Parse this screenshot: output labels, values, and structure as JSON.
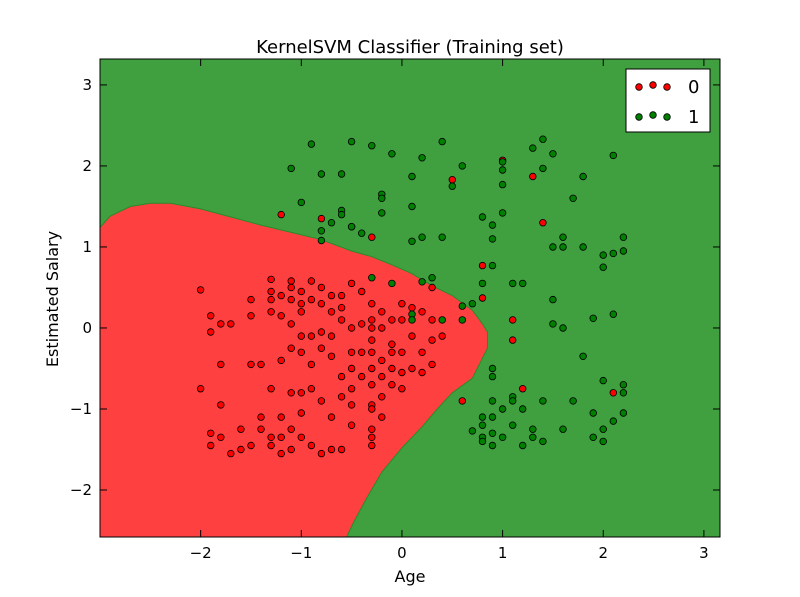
{
  "chart_data": {
    "type": "scatter",
    "title": "KernelSVM Classifier (Training set)",
    "xlabel": "Age",
    "ylabel": "Estimated Salary",
    "xlim": [
      -3.0,
      3.16
    ],
    "ylim": [
      -2.58,
      3.32
    ],
    "xticks": [
      -2,
      -1,
      0,
      1,
      2,
      3
    ],
    "yticks": [
      -2,
      -1,
      0,
      1,
      2,
      3
    ],
    "grid": false,
    "legend_position": "top-right",
    "region_colors": {
      "0": "#ff4040",
      "1": "#40a040"
    },
    "decision_boundary": {
      "class": "0",
      "polygon": [
        [
          -3.0,
          1.24
        ],
        [
          -2.9,
          1.38
        ],
        [
          -2.7,
          1.5
        ],
        [
          -2.5,
          1.54
        ],
        [
          -2.3,
          1.54
        ],
        [
          -2.0,
          1.47
        ],
        [
          -1.7,
          1.37
        ],
        [
          -1.4,
          1.27
        ],
        [
          -1.1,
          1.18
        ],
        [
          -0.8,
          1.09
        ],
        [
          -0.5,
          0.95
        ],
        [
          -0.3,
          0.88
        ],
        [
          -0.1,
          0.78
        ],
        [
          0.1,
          0.67
        ],
        [
          0.3,
          0.52
        ],
        [
          0.5,
          0.4
        ],
        [
          0.7,
          0.22
        ],
        [
          0.8,
          0.05
        ],
        [
          0.85,
          -0.05
        ],
        [
          0.85,
          -0.25
        ],
        [
          0.7,
          -0.62
        ],
        [
          0.5,
          -0.8
        ],
        [
          0.35,
          -1.0
        ],
        [
          0.2,
          -1.22
        ],
        [
          0.0,
          -1.48
        ],
        [
          -0.2,
          -1.78
        ],
        [
          -0.35,
          -2.1
        ],
        [
          -0.48,
          -2.4
        ],
        [
          -0.55,
          -2.58
        ],
        [
          -3.0,
          -2.58
        ]
      ]
    },
    "series": [
      {
        "name": "0",
        "color": "#ff0000",
        "points": [
          [
            -2.0,
            0.47
          ],
          [
            -1.9,
            0.15
          ],
          [
            -1.8,
            0.05
          ],
          [
            -1.9,
            -0.05
          ],
          [
            -1.8,
            -0.45
          ],
          [
            -1.7,
            0.05
          ],
          [
            -1.5,
            0.35
          ],
          [
            -1.5,
            0.15
          ],
          [
            -1.5,
            -0.45
          ],
          [
            -1.4,
            -0.45
          ],
          [
            -1.3,
            0.45
          ],
          [
            -1.3,
            0.35
          ],
          [
            -1.3,
            0.2
          ],
          [
            -1.2,
            0.4
          ],
          [
            -1.1,
            0.58
          ],
          [
            -1.1,
            0.5
          ],
          [
            -1.1,
            0.35
          ],
          [
            -1.0,
            0.45
          ],
          [
            -1.0,
            0.3
          ],
          [
            -1.0,
            0.2
          ],
          [
            -0.9,
            0.58
          ],
          [
            -0.9,
            0.35
          ],
          [
            -0.8,
            0.5
          ],
          [
            -0.8,
            0.3
          ],
          [
            -0.7,
            0.4
          ],
          [
            -0.7,
            0.2
          ],
          [
            -0.6,
            0.25
          ],
          [
            -0.6,
            0.1
          ],
          [
            -1.3,
            0.6
          ],
          [
            -1.2,
            0.15
          ],
          [
            -1.1,
            0.05
          ],
          [
            -1.0,
            -0.1
          ],
          [
            -0.9,
            -0.1
          ],
          [
            -0.8,
            -0.05
          ],
          [
            -0.7,
            -0.1
          ],
          [
            -1.2,
            -0.4
          ],
          [
            -1.1,
            -0.25
          ],
          [
            -1.0,
            -0.3
          ],
          [
            -0.9,
            -0.45
          ],
          [
            -0.8,
            -0.25
          ],
          [
            -0.7,
            -0.35
          ],
          [
            -0.5,
            -0.3
          ],
          [
            -0.5,
            0.0
          ],
          [
            -0.4,
            0.05
          ],
          [
            -0.3,
            0.1
          ],
          [
            -0.3,
            -0.15
          ],
          [
            -0.3,
            -0.3
          ],
          [
            -0.2,
            0.2
          ],
          [
            -0.2,
            0.0
          ],
          [
            -0.2,
            -0.4
          ],
          [
            -0.1,
            0.1
          ],
          [
            -0.1,
            -0.2
          ],
          [
            -0.1,
            -0.5
          ],
          [
            0.0,
            0.3
          ],
          [
            0.0,
            0.1
          ],
          [
            0.0,
            -0.3
          ],
          [
            0.1,
            0.25
          ],
          [
            0.1,
            -0.1
          ],
          [
            0.2,
            0.2
          ],
          [
            0.2,
            -0.3
          ],
          [
            0.3,
            0.5
          ],
          [
            0.3,
            0.1
          ],
          [
            0.3,
            -0.15
          ],
          [
            0.4,
            -0.1
          ],
          [
            -0.3,
            0.3
          ],
          [
            -0.3,
            0.0
          ],
          [
            -0.2,
            -0.6
          ],
          [
            -0.1,
            -0.7
          ],
          [
            -0.3,
            -0.7
          ],
          [
            -0.4,
            -0.6
          ],
          [
            -0.5,
            -0.75
          ],
          [
            -0.2,
            -0.85
          ],
          [
            -0.3,
            -0.95
          ],
          [
            0.0,
            -0.55
          ],
          [
            0.1,
            -0.5
          ],
          [
            0.2,
            -0.55
          ],
          [
            0.3,
            -0.45
          ],
          [
            0.0,
            -0.75
          ],
          [
            -0.1,
            -0.3
          ],
          [
            -0.4,
            -0.3
          ],
          [
            -0.3,
            -0.5
          ],
          [
            -0.5,
            -0.5
          ],
          [
            -2.0,
            -0.75
          ],
          [
            -1.8,
            -0.95
          ],
          [
            -1.9,
            -1.3
          ],
          [
            -1.9,
            -1.45
          ],
          [
            -1.8,
            -1.35
          ],
          [
            -1.7,
            -1.55
          ],
          [
            -1.6,
            -1.5
          ],
          [
            -1.6,
            -1.25
          ],
          [
            -1.5,
            -1.45
          ],
          [
            -1.4,
            -1.1
          ],
          [
            -1.4,
            -1.25
          ],
          [
            -1.3,
            -1.35
          ],
          [
            -1.3,
            -1.45
          ],
          [
            -1.2,
            -1.55
          ],
          [
            -1.2,
            -1.35
          ],
          [
            -1.2,
            -1.1
          ],
          [
            -1.1,
            -1.25
          ],
          [
            -1.1,
            -1.5
          ],
          [
            -1.0,
            -1.05
          ],
          [
            -1.0,
            -0.8
          ],
          [
            -1.0,
            -1.35
          ],
          [
            -0.9,
            -0.75
          ],
          [
            -0.9,
            -1.45
          ],
          [
            -0.8,
            -0.9
          ],
          [
            -0.8,
            -1.55
          ],
          [
            -0.7,
            -1.1
          ],
          [
            -0.7,
            -1.5
          ],
          [
            -0.6,
            -0.85
          ],
          [
            -0.6,
            -1.5
          ],
          [
            -0.5,
            -1.2
          ],
          [
            -0.5,
            -0.95
          ],
          [
            -0.3,
            -1.25
          ],
          [
            -0.3,
            -1.35
          ],
          [
            -0.3,
            -1.45
          ],
          [
            -0.2,
            -1.1
          ],
          [
            -0.3,
            -1.0
          ],
          [
            -1.3,
            -0.75
          ],
          [
            -1.1,
            -0.8
          ],
          [
            -0.6,
            0.4
          ],
          [
            -0.5,
            0.55
          ],
          [
            -0.4,
            0.45
          ],
          [
            -0.6,
            -0.6
          ],
          [
            -1.2,
            1.4
          ],
          [
            -0.8,
            1.35
          ],
          [
            -0.5,
            1.25
          ],
          [
            -0.3,
            1.12
          ],
          [
            0.8,
            0.77
          ],
          [
            0.8,
            0.37
          ],
          [
            1.1,
            0.1
          ],
          [
            1.1,
            -0.15
          ],
          [
            0.5,
            1.83
          ],
          [
            1.0,
            2.07
          ],
          [
            1.3,
            1.87
          ],
          [
            1.4,
            1.3
          ],
          [
            1.2,
            -0.75
          ],
          [
            2.1,
            -0.8
          ],
          [
            0.6,
            -0.9
          ]
        ]
      },
      {
        "name": "1",
        "color": "#008000",
        "points": [
          [
            -1.1,
            1.97
          ],
          [
            -0.9,
            2.27
          ],
          [
            -0.8,
            1.9
          ],
          [
            -0.6,
            1.9
          ],
          [
            -0.5,
            2.3
          ],
          [
            -0.3,
            2.25
          ],
          [
            -0.1,
            2.15
          ],
          [
            0.1,
            1.87
          ],
          [
            0.2,
            2.1
          ],
          [
            0.4,
            2.3
          ],
          [
            0.5,
            1.75
          ],
          [
            0.6,
            2.0
          ],
          [
            -1.0,
            1.55
          ],
          [
            -0.8,
            1.2
          ],
          [
            -0.7,
            1.3
          ],
          [
            -0.6,
            1.45
          ],
          [
            -0.6,
            1.4
          ],
          [
            -0.5,
            1.25
          ],
          [
            -0.4,
            1.17
          ],
          [
            -0.2,
            1.65
          ],
          [
            -0.2,
            1.6
          ],
          [
            -0.2,
            1.42
          ],
          [
            0.1,
            1.5
          ],
          [
            0.1,
            1.07
          ],
          [
            0.2,
            1.12
          ],
          [
            0.4,
            1.12
          ],
          [
            -0.8,
            1.08
          ],
          [
            -0.3,
            0.62
          ],
          [
            -0.1,
            0.55
          ],
          [
            0.2,
            0.57
          ],
          [
            0.3,
            0.62
          ],
          [
            0.6,
            0.27
          ],
          [
            0.7,
            0.3
          ],
          [
            0.6,
            0.1
          ],
          [
            0.4,
            0.1
          ],
          [
            0.1,
            0.17
          ],
          [
            0.1,
            0.1
          ],
          [
            0.8,
            1.37
          ],
          [
            0.9,
            1.27
          ],
          [
            1.0,
            1.42
          ],
          [
            1.0,
            1.77
          ],
          [
            1.0,
            1.95
          ],
          [
            1.0,
            2.05
          ],
          [
            0.9,
            1.1
          ],
          [
            0.8,
            0.55
          ],
          [
            0.9,
            0.77
          ],
          [
            1.1,
            0.55
          ],
          [
            1.2,
            0.55
          ],
          [
            1.3,
            2.22
          ],
          [
            1.4,
            2.33
          ],
          [
            1.4,
            1.97
          ],
          [
            1.5,
            2.15
          ],
          [
            1.6,
            1.12
          ],
          [
            1.5,
            1.0
          ],
          [
            1.6,
            1.0
          ],
          [
            1.7,
            1.6
          ],
          [
            1.8,
            1.0
          ],
          [
            1.8,
            1.87
          ],
          [
            2.0,
            0.9
          ],
          [
            2.0,
            0.75
          ],
          [
            2.1,
            0.92
          ],
          [
            2.1,
            2.13
          ],
          [
            2.2,
            0.95
          ],
          [
            2.2,
            1.12
          ],
          [
            1.5,
            0.35
          ],
          [
            1.5,
            0.05
          ],
          [
            1.6,
            0.0
          ],
          [
            1.9,
            0.12
          ],
          [
            2.1,
            0.17
          ],
          [
            0.7,
            -1.27
          ],
          [
            0.8,
            -1.35
          ],
          [
            0.8,
            -1.1
          ],
          [
            0.8,
            -1.2
          ],
          [
            0.8,
            -1.4
          ],
          [
            0.9,
            -1.45
          ],
          [
            0.9,
            -1.3
          ],
          [
            0.9,
            -1.1
          ],
          [
            0.9,
            -0.9
          ],
          [
            1.0,
            -1.0
          ],
          [
            1.0,
            -1.35
          ],
          [
            1.1,
            -1.2
          ],
          [
            1.1,
            -0.85
          ],
          [
            1.1,
            -0.9
          ],
          [
            1.2,
            -1.45
          ],
          [
            1.2,
            -1.0
          ],
          [
            1.3,
            -1.35
          ],
          [
            1.3,
            -1.25
          ],
          [
            1.4,
            -1.4
          ],
          [
            1.4,
            -0.9
          ],
          [
            1.6,
            -1.25
          ],
          [
            1.7,
            -0.9
          ],
          [
            1.8,
            -0.35
          ],
          [
            1.9,
            -1.05
          ],
          [
            1.9,
            -1.35
          ],
          [
            2.0,
            -1.25
          ],
          [
            2.0,
            -0.65
          ],
          [
            2.0,
            -1.4
          ],
          [
            2.1,
            -1.15
          ],
          [
            2.2,
            -0.7
          ],
          [
            2.2,
            -0.8
          ],
          [
            2.2,
            -1.05
          ],
          [
            0.9,
            -0.6
          ],
          [
            0.9,
            -0.5
          ]
        ]
      }
    ]
  }
}
